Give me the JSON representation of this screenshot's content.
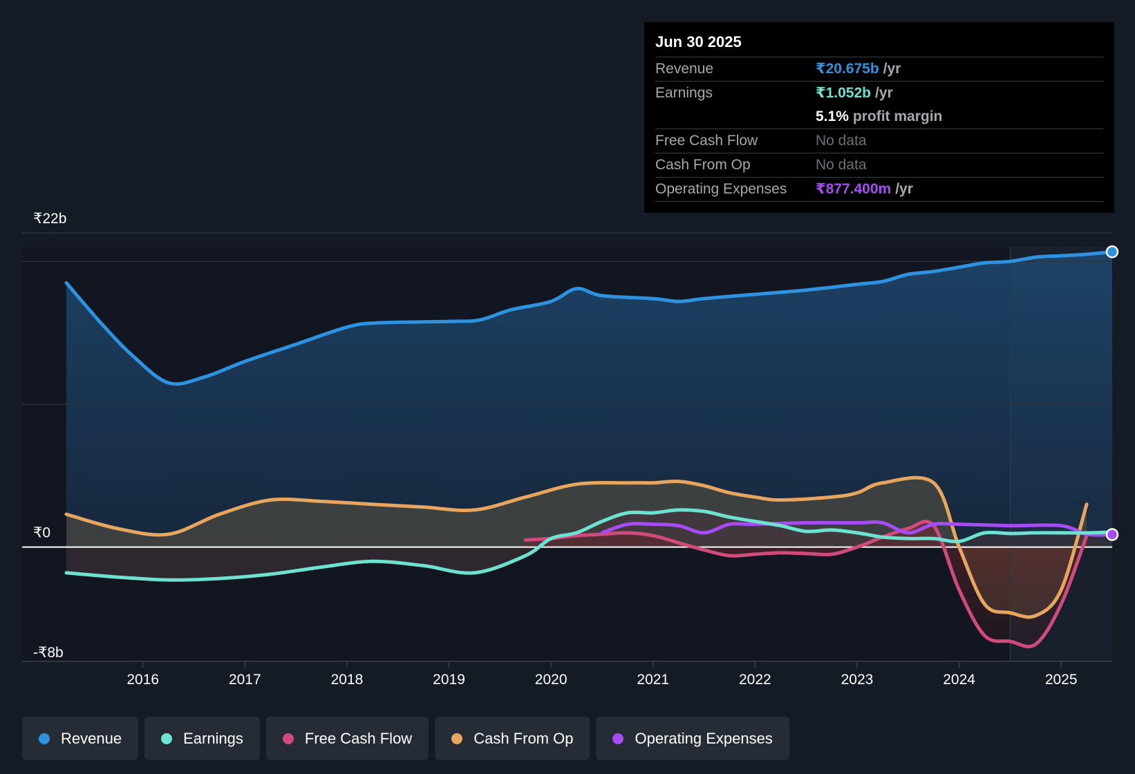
{
  "tooltip": {
    "date": "Jun 30 2025",
    "rows": [
      {
        "label": "Revenue",
        "value": "₹20.675b",
        "unit": "/yr",
        "color": "#2d93e1"
      },
      {
        "label": "Earnings",
        "value": "₹1.052b",
        "unit": "/yr",
        "color": "#6de2d0"
      },
      {
        "label": "",
        "value": "5.1%",
        "unit": "profit margin",
        "color": "#ffffff"
      },
      {
        "label": "Free Cash Flow",
        "value": "No data",
        "unit": "",
        "color": "#6b7078"
      },
      {
        "label": "Cash From Op",
        "value": "No data",
        "unit": "",
        "color": "#6b7078"
      },
      {
        "label": "Operating Expenses",
        "value": "₹877.400m",
        "unit": "/yr",
        "color": "#a64cf2"
      }
    ]
  },
  "legend": [
    {
      "label": "Revenue",
      "color": "#2d93e1"
    },
    {
      "label": "Earnings",
      "color": "#6de2d0"
    },
    {
      "label": "Free Cash Flow",
      "color": "#d04a7e"
    },
    {
      "label": "Cash From Op",
      "color": "#e7a55e"
    },
    {
      "label": "Operating Expenses",
      "color": "#a64cf2"
    }
  ],
  "chart_data": {
    "type": "area",
    "y_tick_labels": [
      "₹22b",
      "₹0",
      "-₹8b"
    ],
    "ylim": [
      -8,
      22
    ],
    "xlim": [
      2015.25,
      2025.5
    ],
    "x_tick_labels": [
      "2016",
      "2017",
      "2018",
      "2019",
      "2020",
      "2021",
      "2022",
      "2023",
      "2024",
      "2025"
    ],
    "x_ticks": [
      2016,
      2017,
      2018,
      2019,
      2020,
      2021,
      2022,
      2023,
      2024,
      2025
    ],
    "past_data_boundary": 2024.5,
    "series": [
      {
        "name": "Revenue",
        "color": "#2d93e1",
        "points": [
          [
            2015.25,
            18.5
          ],
          [
            2015.6,
            15.6
          ],
          [
            2015.9,
            13.4
          ],
          [
            2016.25,
            11.5
          ],
          [
            2016.6,
            11.9
          ],
          [
            2017.0,
            13.0
          ],
          [
            2017.5,
            14.2
          ],
          [
            2018.0,
            15.4
          ],
          [
            2018.3,
            15.7
          ],
          [
            2019.0,
            15.8
          ],
          [
            2019.3,
            15.9
          ],
          [
            2019.6,
            16.6
          ],
          [
            2020.0,
            17.2
          ],
          [
            2020.25,
            18.1
          ],
          [
            2020.5,
            17.6
          ],
          [
            2021.0,
            17.4
          ],
          [
            2021.25,
            17.2
          ],
          [
            2021.5,
            17.4
          ],
          [
            2022.0,
            17.7
          ],
          [
            2022.5,
            18.0
          ],
          [
            2023.0,
            18.4
          ],
          [
            2023.25,
            18.6
          ],
          [
            2023.5,
            19.1
          ],
          [
            2023.75,
            19.3
          ],
          [
            2024.0,
            19.6
          ],
          [
            2024.25,
            19.9
          ],
          [
            2024.5,
            20.0
          ],
          [
            2024.75,
            20.3
          ],
          [
            2025.0,
            20.4
          ],
          [
            2025.25,
            20.5
          ],
          [
            2025.5,
            20.675
          ]
        ]
      },
      {
        "name": "Earnings",
        "color": "#6de2d0",
        "points": [
          [
            2015.25,
            -1.8
          ],
          [
            2015.75,
            -2.1
          ],
          [
            2016.25,
            -2.3
          ],
          [
            2016.75,
            -2.2
          ],
          [
            2017.25,
            -1.9
          ],
          [
            2017.75,
            -1.4
          ],
          [
            2018.25,
            -1.0
          ],
          [
            2018.75,
            -1.3
          ],
          [
            2019.25,
            -1.8
          ],
          [
            2019.75,
            -0.6
          ],
          [
            2020.0,
            0.6
          ],
          [
            2020.25,
            1.0
          ],
          [
            2020.5,
            1.8
          ],
          [
            2020.75,
            2.4
          ],
          [
            2021.0,
            2.4
          ],
          [
            2021.25,
            2.6
          ],
          [
            2021.5,
            2.5
          ],
          [
            2021.75,
            2.1
          ],
          [
            2022.0,
            1.8
          ],
          [
            2022.25,
            1.5
          ],
          [
            2022.5,
            1.1
          ],
          [
            2022.75,
            1.2
          ],
          [
            2023.0,
            1.0
          ],
          [
            2023.25,
            0.7
          ],
          [
            2023.5,
            0.6
          ],
          [
            2023.75,
            0.6
          ],
          [
            2024.0,
            0.4
          ],
          [
            2024.25,
            1.0
          ],
          [
            2024.5,
            0.95
          ],
          [
            2024.75,
            1.0
          ],
          [
            2025.0,
            1.0
          ],
          [
            2025.25,
            1.0
          ],
          [
            2025.5,
            1.052
          ]
        ]
      },
      {
        "name": "Free Cash Flow",
        "color": "#d04a7e",
        "points": [
          [
            2019.75,
            0.5
          ],
          [
            2020.0,
            0.6
          ],
          [
            2020.25,
            0.8
          ],
          [
            2020.5,
            0.9
          ],
          [
            2020.75,
            1.0
          ],
          [
            2021.0,
            0.8
          ],
          [
            2021.25,
            0.3
          ],
          [
            2021.5,
            -0.2
          ],
          [
            2021.75,
            -0.6
          ],
          [
            2022.0,
            -0.5
          ],
          [
            2022.25,
            -0.4
          ],
          [
            2022.5,
            -0.45
          ],
          [
            2022.75,
            -0.5
          ],
          [
            2023.0,
            0.0
          ],
          [
            2023.25,
            0.7
          ],
          [
            2023.5,
            1.3
          ],
          [
            2023.75,
            1.5
          ],
          [
            2024.0,
            -3.0
          ],
          [
            2024.25,
            -6.2
          ],
          [
            2024.5,
            -6.6
          ],
          [
            2024.75,
            -6.8
          ],
          [
            2025.0,
            -4.0
          ],
          [
            2025.25,
            0.8
          ]
        ]
      },
      {
        "name": "Cash From Op",
        "color": "#e7a55e",
        "points": [
          [
            2015.25,
            2.3
          ],
          [
            2015.75,
            1.3
          ],
          [
            2016.25,
            0.9
          ],
          [
            2016.75,
            2.3
          ],
          [
            2017.25,
            3.3
          ],
          [
            2017.75,
            3.2
          ],
          [
            2018.25,
            3.0
          ],
          [
            2018.75,
            2.8
          ],
          [
            2019.25,
            2.6
          ],
          [
            2019.75,
            3.5
          ],
          [
            2020.25,
            4.4
          ],
          [
            2020.75,
            4.5
          ],
          [
            2021.0,
            4.5
          ],
          [
            2021.25,
            4.6
          ],
          [
            2021.5,
            4.3
          ],
          [
            2021.75,
            3.8
          ],
          [
            2022.0,
            3.5
          ],
          [
            2022.25,
            3.3
          ],
          [
            2022.75,
            3.5
          ],
          [
            2023.0,
            3.8
          ],
          [
            2023.25,
            4.5
          ],
          [
            2023.75,
            4.5
          ],
          [
            2024.0,
            0.0
          ],
          [
            2024.25,
            -4.0
          ],
          [
            2024.5,
            -4.6
          ],
          [
            2024.75,
            -4.8
          ],
          [
            2025.0,
            -3.0
          ],
          [
            2025.25,
            3.0
          ]
        ]
      },
      {
        "name": "Operating Expenses",
        "color": "#a64cf2",
        "points": [
          [
            2020.5,
            1.0
          ],
          [
            2020.75,
            1.6
          ],
          [
            2021.0,
            1.6
          ],
          [
            2021.25,
            1.5
          ],
          [
            2021.5,
            1.0
          ],
          [
            2021.75,
            1.6
          ],
          [
            2022.0,
            1.6
          ],
          [
            2022.5,
            1.7
          ],
          [
            2023.0,
            1.7
          ],
          [
            2023.25,
            1.7
          ],
          [
            2023.5,
            1.0
          ],
          [
            2023.75,
            1.6
          ],
          [
            2024.0,
            1.6
          ],
          [
            2024.5,
            1.5
          ],
          [
            2025.0,
            1.5
          ],
          [
            2025.25,
            0.9
          ],
          [
            2025.5,
            0.877
          ]
        ]
      }
    ]
  }
}
